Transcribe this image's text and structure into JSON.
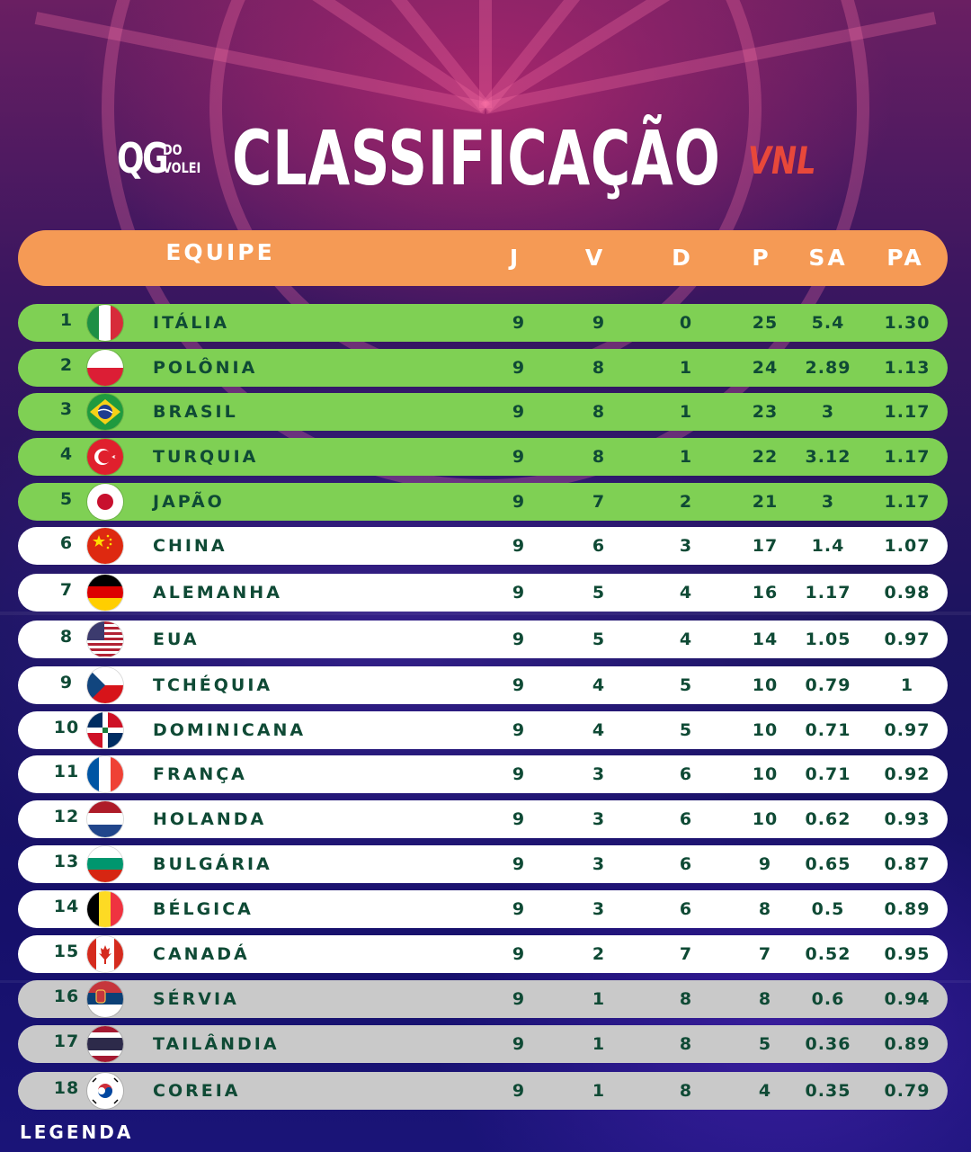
{
  "header": {
    "logo_main": "QG",
    "logo_top": "DO",
    "logo_bottom": "VOLEI",
    "title": "CLASSIFICAÇÃO",
    "tag": "VNL"
  },
  "table": {
    "columns": [
      "EQUIPE",
      "J",
      "V",
      "D",
      "P",
      "SA",
      "PA"
    ],
    "rows": [
      {
        "rank": "1",
        "team": "ITÁLIA",
        "flag": "italy-flag-icon",
        "j": "9",
        "v": "9",
        "d": "0",
        "p": "25",
        "sa": "5.4",
        "pa": "1.30",
        "zone": "green"
      },
      {
        "rank": "2",
        "team": "POLÔNIA",
        "flag": "poland-flag-icon",
        "j": "9",
        "v": "8",
        "d": "1",
        "p": "24",
        "sa": "2.89",
        "pa": "1.13",
        "zone": "green"
      },
      {
        "rank": "3",
        "team": "BRASIL",
        "flag": "brazil-flag-icon",
        "j": "9",
        "v": "8",
        "d": "1",
        "p": "23",
        "sa": "3",
        "pa": "1.17",
        "zone": "green"
      },
      {
        "rank": "4",
        "team": "TURQUIA",
        "flag": "turkey-flag-icon",
        "j": "9",
        "v": "8",
        "d": "1",
        "p": "22",
        "sa": "3.12",
        "pa": "1.17",
        "zone": "green"
      },
      {
        "rank": "5",
        "team": "JAPÃO",
        "flag": "japan-flag-icon",
        "j": "9",
        "v": "7",
        "d": "2",
        "p": "21",
        "sa": "3",
        "pa": "1.17",
        "zone": "green"
      },
      {
        "rank": "6",
        "team": "CHINA",
        "flag": "china-flag-icon",
        "j": "9",
        "v": "6",
        "d": "3",
        "p": "17",
        "sa": "1.4",
        "pa": "1.07",
        "zone": "white"
      },
      {
        "rank": "7",
        "team": "ALEMANHA",
        "flag": "germany-flag-icon",
        "j": "9",
        "v": "5",
        "d": "4",
        "p": "16",
        "sa": "1.17",
        "pa": "0.98",
        "zone": "white"
      },
      {
        "rank": "8",
        "team": "EUA",
        "flag": "usa-flag-icon",
        "j": "9",
        "v": "5",
        "d": "4",
        "p": "14",
        "sa": "1.05",
        "pa": "0.97",
        "zone": "white"
      },
      {
        "rank": "9",
        "team": "TCHÉQUIA",
        "flag": "czechia-flag-icon",
        "j": "9",
        "v": "4",
        "d": "5",
        "p": "10",
        "sa": "0.79",
        "pa": "1",
        "zone": "white"
      },
      {
        "rank": "10",
        "team": "DOMINICANA",
        "flag": "dominican-flag-icon",
        "j": "9",
        "v": "4",
        "d": "5",
        "p": "10",
        "sa": "0.71",
        "pa": "0.97",
        "zone": "white"
      },
      {
        "rank": "11",
        "team": "FRANÇA",
        "flag": "france-flag-icon",
        "j": "9",
        "v": "3",
        "d": "6",
        "p": "10",
        "sa": "0.71",
        "pa": "0.92",
        "zone": "white"
      },
      {
        "rank": "12",
        "team": "HOLANDA",
        "flag": "netherlands-flag-icon",
        "j": "9",
        "v": "3",
        "d": "6",
        "p": "10",
        "sa": "0.62",
        "pa": "0.93",
        "zone": "white"
      },
      {
        "rank": "13",
        "team": "BULGÁRIA",
        "flag": "bulgaria-flag-icon",
        "j": "9",
        "v": "3",
        "d": "6",
        "p": "9",
        "sa": "0.65",
        "pa": "0.87",
        "zone": "white"
      },
      {
        "rank": "14",
        "team": "BÉLGICA",
        "flag": "belgium-flag-icon",
        "j": "9",
        "v": "3",
        "d": "6",
        "p": "8",
        "sa": "0.5",
        "pa": "0.89",
        "zone": "white"
      },
      {
        "rank": "15",
        "team": "CANADÁ",
        "flag": "canada-flag-icon",
        "j": "9",
        "v": "2",
        "d": "7",
        "p": "7",
        "sa": "0.52",
        "pa": "0.95",
        "zone": "white"
      },
      {
        "rank": "16",
        "team": "SÉRVIA",
        "flag": "serbia-flag-icon",
        "j": "9",
        "v": "1",
        "d": "8",
        "p": "8",
        "sa": "0.6",
        "pa": "0.94",
        "zone": "gray"
      },
      {
        "rank": "17",
        "team": "TAILÂNDIA",
        "flag": "thailand-flag-icon",
        "j": "9",
        "v": "1",
        "d": "8",
        "p": "5",
        "sa": "0.36",
        "pa": "0.89",
        "zone": "gray"
      },
      {
        "rank": "18",
        "team": "COREIA",
        "flag": "korea-flag-icon",
        "j": "9",
        "v": "1",
        "d": "8",
        "p": "4",
        "sa": "0.35",
        "pa": "0.79",
        "zone": "gray"
      }
    ]
  },
  "legend": "LEGENDA",
  "colors": {
    "header_bar": "#f59a55",
    "zone_green": "#7fd054",
    "zone_white": "#ffffff",
    "zone_gray": "#c9c9c9",
    "text_dark": "#0f4a35",
    "accent_red": "#e8483a"
  }
}
